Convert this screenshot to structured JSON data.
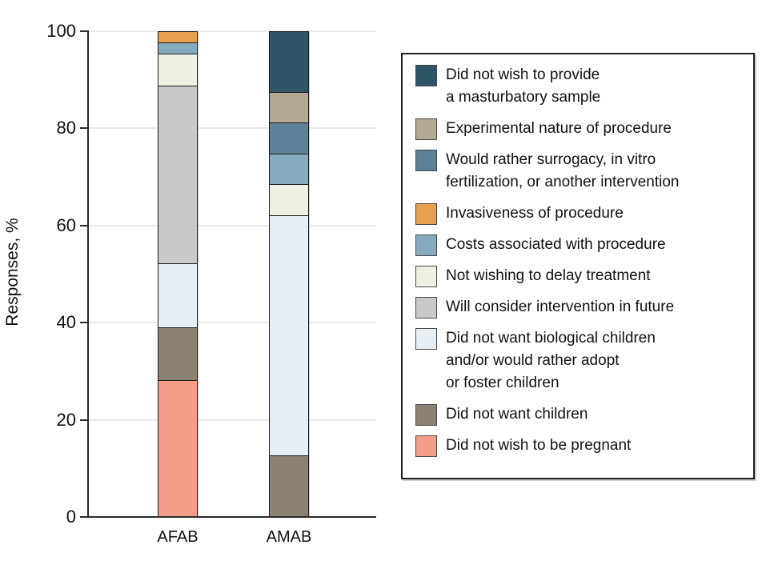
{
  "chart_data": {
    "type": "bar",
    "stacked": true,
    "ylabel": "Responses, %",
    "ylim": [
      0,
      100
    ],
    "yticks": [
      0,
      20,
      40,
      60,
      80,
      100
    ],
    "grid": true,
    "legend_position": "right",
    "categories": [
      "AFAB",
      "AMAB"
    ],
    "series": [
      {
        "name": "Did not wish to provide a masturbatory sample",
        "legend_lines": [
          "Did not wish to provide",
          "a masturbatory sample"
        ],
        "color": "#2e5565",
        "values": [
          0,
          12.5
        ]
      },
      {
        "name": "Experimental nature of procedure",
        "legend_lines": [
          "Experimental nature of procedure"
        ],
        "color": "#b3a895",
        "values": [
          0,
          6.25
        ]
      },
      {
        "name": "Would rather surrogacy, in vitro fertilization, or another intervention",
        "legend_lines": [
          "Would rather surrogacy, in vitro",
          "fertilization, or another intervention"
        ],
        "color": "#5d8297",
        "values": [
          0,
          6.25
        ]
      },
      {
        "name": "Invasiveness of procedure",
        "legend_lines": [
          "Invasiveness of procedure"
        ],
        "color": "#e6a04f",
        "values": [
          2.17,
          0
        ]
      },
      {
        "name": "Costs associated with procedure",
        "legend_lines": [
          "Costs associated with procedure"
        ],
        "color": "#87abbe",
        "values": [
          2.17,
          6.25
        ]
      },
      {
        "name": "Not wishing to delay treatment",
        "legend_lines": [
          "Not wishing to delay treatment"
        ],
        "color": "#f0efe4",
        "values": [
          6.52,
          6.25
        ]
      },
      {
        "name": "Will consider intervention in future",
        "legend_lines": [
          "Will consider intervention in future"
        ],
        "color": "#c8c9cb",
        "values": [
          36.96,
          0
        ]
      },
      {
        "name": "Did not want biological children and/or would rather adopt or foster children",
        "legend_lines": [
          "Did not want biological children",
          "and/or would rather adopt",
          "or foster children"
        ],
        "color": "#e8eff4",
        "values": [
          13.04,
          50
        ]
      },
      {
        "name": "Did not want children",
        "legend_lines": [
          "Did not want children"
        ],
        "color": "#8b8274",
        "values": [
          10.87,
          12.5
        ]
      },
      {
        "name": "Did not wish to be pregnant",
        "legend_lines": [
          "Did not wish to be pregnant"
        ],
        "color": "#f19d89",
        "values": [
          28.26,
          0
        ]
      }
    ],
    "colors": {
      "axis": "#2b2b2b",
      "grid": "#e9e9e9",
      "segment_border": "#1c1c1c",
      "background": "#ffffff"
    }
  }
}
